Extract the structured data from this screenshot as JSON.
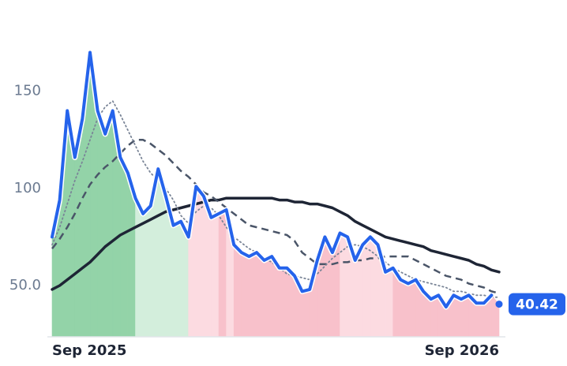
{
  "chart_data": {
    "type": "line",
    "categories": [
      "Sep 2025",
      null,
      null,
      null,
      null,
      null,
      null,
      null,
      null,
      null,
      null,
      null,
      null,
      null,
      null,
      null,
      null,
      null,
      null,
      null,
      null,
      null,
      null,
      null,
      null,
      null,
      null,
      null,
      null,
      null,
      null,
      null,
      null,
      null,
      null,
      null,
      null,
      null,
      null,
      null,
      null,
      null,
      null,
      null,
      null,
      null,
      null,
      null,
      null,
      null,
      null,
      null,
      null,
      null,
      null,
      null,
      null,
      null,
      null,
      "Sep 2026"
    ],
    "series": [
      {
        "style": "solid-price",
        "color": "#2563eb",
        "values": [
          75,
          94,
          140,
          116,
          136,
          170,
          140,
          128,
          140,
          116,
          108,
          95,
          87,
          91,
          110,
          96,
          81,
          83,
          75,
          101,
          96,
          85,
          87,
          89,
          71,
          67,
          65,
          67,
          63,
          65,
          59,
          59,
          55,
          47,
          48,
          63,
          75,
          67,
          77,
          75,
          63,
          71,
          75,
          71,
          57,
          59,
          53,
          51,
          53,
          47,
          43,
          45,
          39,
          45,
          43,
          45,
          41,
          41,
          45,
          40.42
        ],
        "fill_colors": [
          "#93d3a8",
          "#93d3a8",
          "#93d3a8",
          "#93d3a8",
          "#93d3a8",
          "#93d3a8",
          "#93d3a8",
          "#93d3a8",
          "#93d3a8",
          "#93d3a8",
          "#93d3a8",
          "#d3eedc",
          "#d3eedc",
          "#d3eedc",
          "#d3eedc",
          "#d3eedc",
          "#d3eedc",
          "#d3eedc",
          "#fcdbe1",
          "#fcdbe1",
          "#fcdbe1",
          "#fcdbe1",
          "#f8c1cb",
          "#fcdbe1",
          "#f8c1cb",
          "#f8c1cb",
          "#f8c1cb",
          "#f8c1cb",
          "#f8c1cb",
          "#f8c1cb",
          "#f8c1cb",
          "#f8c1cb",
          "#f8c1cb",
          "#f8c1cb",
          "#f8c1cb",
          "#f8c1cb",
          "#f8c1cb",
          "#f8c1cb",
          "#fcdbe1",
          "#fcdbe1",
          "#fcdbe1",
          "#fcdbe1",
          "#fcdbe1",
          "#fcdbe1",
          "#fcdbe1",
          "#f8c1cb",
          "#f8c1cb",
          "#f8c1cb",
          "#f8c1cb",
          "#f8c1cb",
          "#f8c1cb",
          "#f8c1cb",
          "#f8c1cb",
          "#f8c1cb",
          "#f8c1cb",
          "#f8c1cb",
          "#f8c1cb",
          "#f8c1cb",
          "#f8c1cb",
          "#f8c1cb"
        ]
      },
      {
        "style": "dotted",
        "color": "#7a8597",
        "values": [
          71,
          80,
          92,
          104,
          114,
          125,
          136,
          142,
          145,
          138,
          130,
          122,
          114,
          108,
          104,
          100,
          94,
          86,
          82,
          88,
          91,
          90,
          86,
          80,
          75,
          72,
          69,
          67,
          64,
          62,
          59,
          56,
          55,
          54,
          53,
          56,
          60,
          64,
          67,
          70,
          71,
          70,
          68,
          65,
          62,
          59,
          57,
          55,
          53,
          52,
          51,
          50,
          49,
          47,
          47,
          46,
          45,
          45,
          44,
          44
        ]
      },
      {
        "style": "dashed",
        "color": "#4a5568",
        "values": [
          69,
          74,
          80,
          87,
          95,
          102,
          107,
          111,
          114,
          118,
          122,
          125,
          125,
          123,
          120,
          117,
          113,
          109,
          106,
          102,
          98,
          96,
          93,
          90,
          87,
          84,
          81,
          80,
          79,
          78,
          77,
          76,
          73,
          67,
          64,
          61,
          61,
          61,
          62,
          62,
          63,
          63,
          64,
          64,
          65,
          65,
          65,
          65,
          63,
          61,
          59,
          57,
          55,
          54,
          53,
          51,
          50,
          49,
          47,
          46
        ]
      },
      {
        "style": "solid",
        "color": "#1e2535",
        "values": [
          48,
          50,
          53,
          56,
          59,
          62,
          66,
          70,
          73,
          76,
          78,
          80,
          82,
          84,
          86,
          88,
          89,
          90,
          91,
          92,
          93,
          94,
          94,
          95,
          95,
          95,
          95,
          95,
          95,
          95,
          94,
          94,
          93,
          93,
          92,
          92,
          91,
          90,
          88,
          86,
          83,
          81,
          79,
          77,
          75,
          74,
          73,
          72,
          71,
          70,
          68,
          67,
          66,
          65,
          64,
          63,
          61,
          60,
          58,
          57
        ]
      }
    ],
    "ylim": [
      23.6,
      197
    ],
    "yticks": [
      {
        "value": 50,
        "label": "50.0"
      },
      100,
      150
    ],
    "grid": false
  }
}
